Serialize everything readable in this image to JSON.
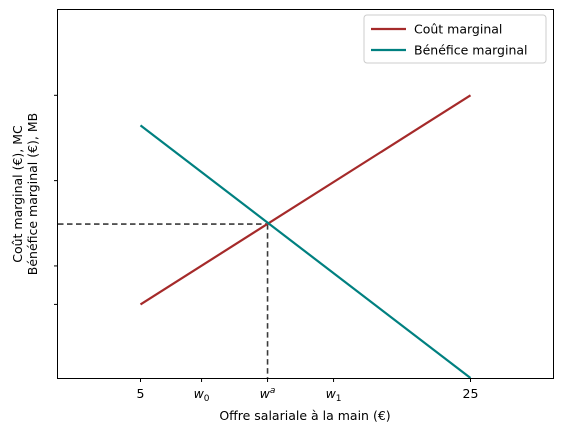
{
  "chart_data": {
    "type": "line",
    "xlabel": "Offre salariale à la main (€)",
    "ylabel_lines": [
      "Coût marginal (€), MC",
      "Bénéfice marginal (€), MB"
    ],
    "xlim": [
      0,
      30
    ],
    "ylim": [
      0,
      22
    ],
    "x_ticks": [
      {
        "value": 5,
        "label": "5",
        "math": false
      },
      {
        "value": 8.7,
        "label": "w",
        "sub": "0",
        "math": true
      },
      {
        "value": 12.7,
        "label": "w",
        "sup": "a",
        "math": true
      },
      {
        "value": 16.7,
        "label": "w",
        "sub": "1",
        "math": true
      },
      {
        "value": 25,
        "label": "25",
        "math": false
      }
    ],
    "y_ticks": [
      4.4,
      6.7,
      11.8,
      16.9
    ],
    "series": [
      {
        "name": "Coût marginal",
        "color": "#a52a2a",
        "x": [
          5,
          25
        ],
        "y": [
          4.4,
          16.9
        ]
      },
      {
        "name": "Bénéfice marginal",
        "color": "#008080",
        "x": [
          5,
          25
        ],
        "y": [
          15.1,
          0
        ]
      }
    ],
    "equilibrium": {
      "x": 12.7,
      "y": 9.2
    },
    "legend_position": "top-right",
    "grid": false
  }
}
